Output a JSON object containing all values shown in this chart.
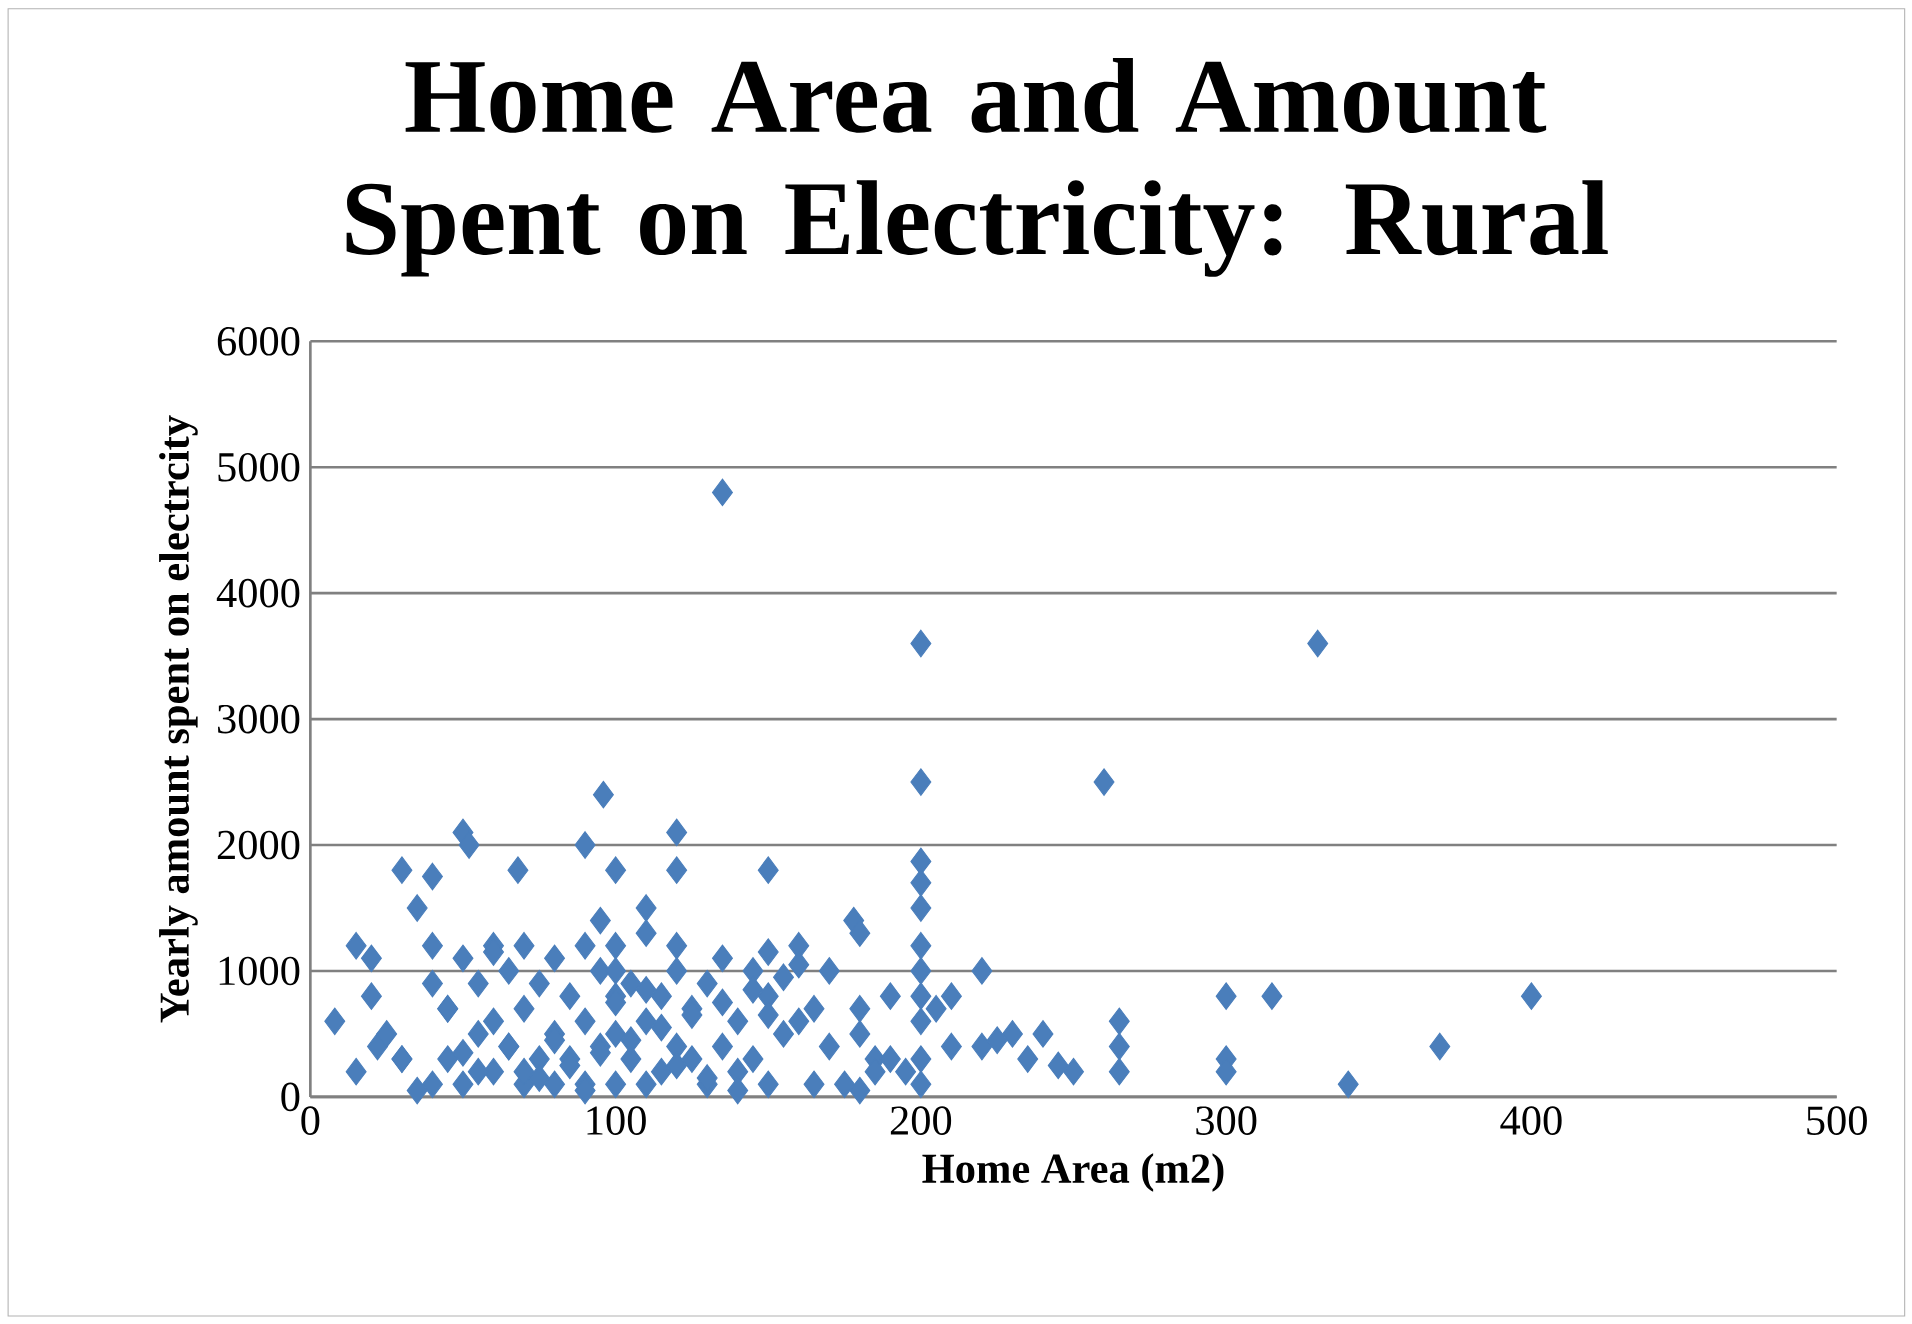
{
  "chart_data": {
    "type": "scatter",
    "title": "Home Area and Amount Spent on Electricity: Rural",
    "xlabel": "Home Area (m2)",
    "ylabel": "Yearly amount spent on electrcity",
    "xlim": [
      0,
      500
    ],
    "ylim": [
      0,
      6000
    ],
    "xticks": [
      0,
      100,
      200,
      300,
      400,
      500
    ],
    "yticks": [
      0,
      1000,
      2000,
      3000,
      4000,
      5000,
      6000
    ],
    "grid": "y",
    "marker": "diamond",
    "series": [
      {
        "color": "#4a7ebb",
        "x": [
          8,
          15,
          15,
          20,
          20,
          22,
          30,
          30,
          35,
          40,
          40,
          50,
          52,
          68,
          90,
          96,
          100,
          95,
          110,
          120,
          120,
          135,
          150,
          160,
          170,
          178,
          180,
          200,
          200,
          200,
          200,
          200,
          200,
          200,
          200,
          200,
          200,
          200,
          220,
          220,
          230,
          240,
          250,
          260,
          265,
          265,
          265,
          300,
          300,
          300,
          315,
          330,
          340,
          370,
          400,
          190,
          185,
          180,
          210,
          205,
          225,
          235,
          245,
          210,
          40,
          40,
          45,
          45,
          50,
          50,
          55,
          55,
          60,
          60,
          60,
          65,
          65,
          70,
          70,
          70,
          75,
          75,
          80,
          80,
          80,
          85,
          85,
          90,
          90,
          90,
          95,
          95,
          100,
          100,
          100,
          100,
          105,
          105,
          110,
          110,
          110,
          115,
          115,
          120,
          120,
          120,
          125,
          125,
          130,
          130,
          135,
          135,
          140,
          140,
          145,
          145,
          150,
          150,
          155,
          160,
          165,
          165,
          170,
          175,
          180,
          180,
          185,
          190,
          195,
          25,
          30,
          35,
          45,
          55,
          65,
          75,
          85,
          95,
          105,
          115,
          125,
          135,
          145,
          155,
          160,
          60,
          80,
          100,
          120,
          140,
          70,
          90,
          110,
          130,
          150,
          50,
          100,
          150
        ],
        "values": [
          600,
          200,
          1200,
          1100,
          800,
          400,
          300,
          1800,
          1500,
          1750,
          1200,
          2100,
          2000,
          1800,
          2000,
          2400,
          1800,
          1400,
          1500,
          2100,
          1800,
          4800,
          1800,
          1200,
          1000,
          1400,
          1300,
          3600,
          2500,
          1870,
          1700,
          1500,
          1200,
          1000,
          800,
          300,
          100,
          600,
          1000,
          400,
          500,
          500,
          200,
          2500,
          600,
          400,
          200,
          800,
          300,
          200,
          800,
          3600,
          100,
          400,
          800,
          800,
          300,
          50,
          800,
          700,
          450,
          300,
          250,
          400,
          100,
          900,
          300,
          700,
          100,
          1100,
          500,
          900,
          200,
          600,
          1200,
          400,
          1000,
          100,
          700,
          1200,
          300,
          900,
          100,
          500,
          1100,
          300,
          800,
          100,
          600,
          1200,
          400,
          1000,
          100,
          500,
          800,
          1200,
          300,
          900,
          100,
          600,
          1300,
          200,
          800,
          400,
          1000,
          1200,
          300,
          700,
          100,
          900,
          400,
          1100,
          200,
          600,
          300,
          1000,
          100,
          800,
          500,
          600,
          100,
          700,
          400,
          100,
          500,
          700,
          200,
          300,
          200,
          500,
          300,
          50,
          700,
          200,
          400,
          150,
          250,
          350,
          450,
          550,
          650,
          750,
          850,
          950,
          1050,
          1150,
          450,
          750,
          250,
          50,
          200,
          50,
          850,
          150,
          650,
          350,
          1000,
          1150
        ]
      }
    ]
  }
}
